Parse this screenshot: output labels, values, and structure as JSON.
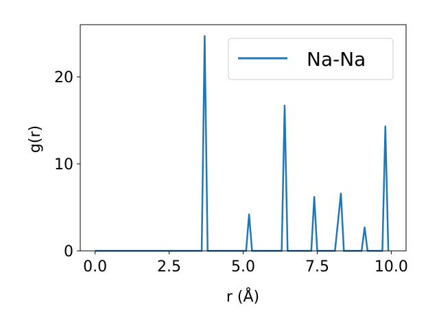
{
  "chart_data": {
    "type": "line",
    "xlabel": "r (Å)",
    "ylabel": "g(r)",
    "xlim": [
      -0.5,
      10.5
    ],
    "ylim": [
      0,
      26
    ],
    "x_ticks": [
      0.0,
      2.5,
      5.0,
      7.5,
      10.0
    ],
    "x_tick_labels": [
      "0.0",
      "2.5",
      "5.0",
      "7.5",
      "10.0"
    ],
    "y_ticks": [
      0,
      10,
      20
    ],
    "y_tick_labels": [
      "0",
      "10",
      "20"
    ],
    "grid": false,
    "legend_position": "upper-right",
    "series": [
      {
        "name": "Na-Na",
        "color": "#1f77b4",
        "x": [
          0.0,
          3.6,
          3.7,
          3.8,
          5.1,
          5.2,
          5.3,
          6.3,
          6.4,
          6.5,
          7.3,
          7.4,
          7.5,
          8.1,
          8.3,
          8.4,
          9.0,
          9.1,
          9.2,
          9.7,
          9.8,
          9.9
        ],
        "y": [
          0,
          0,
          24.7,
          0,
          0,
          4.2,
          0,
          0,
          16.7,
          0,
          0,
          6.2,
          0,
          0,
          6.6,
          0,
          0,
          2.7,
          0,
          0,
          14.3,
          0
        ]
      }
    ]
  }
}
